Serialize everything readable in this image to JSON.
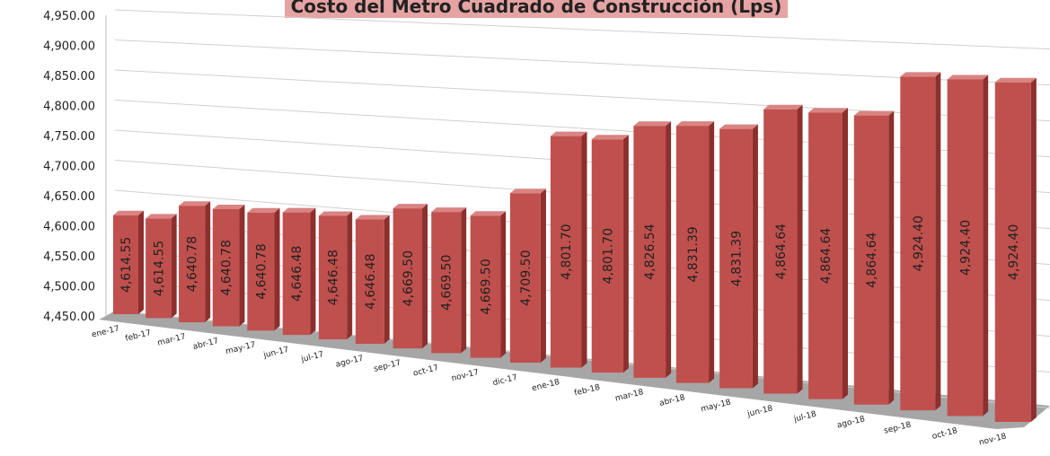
{
  "chart_data": {
    "type": "bar3d",
    "title": "Costo del Metro Cuadrado de Construcción (Lps)",
    "categories": [
      "ene-17",
      "feb-17",
      "mar-17",
      "abr-17",
      "may-17",
      "jun-17",
      "jul-17",
      "ago-17",
      "sep-17",
      "oct-17",
      "nov-17",
      "dic-17",
      "ene-18",
      "feb-18",
      "mar-18",
      "abr-18",
      "may-18",
      "jun-18",
      "jul-18",
      "ago-18",
      "sep-18",
      "oct-18",
      "nov-18"
    ],
    "values": [
      4614.55,
      4614.55,
      4640.78,
      4640.78,
      4640.78,
      4646.48,
      4646.48,
      4646.48,
      4669.5,
      4669.5,
      4669.5,
      4709.5,
      4801.7,
      4801.7,
      4826.54,
      4831.39,
      4831.39,
      4864.64,
      4864.64,
      4864.64,
      4924.4,
      4924.4,
      4924.4
    ],
    "value_labels": [
      "4,614.55",
      "4,614.55",
      "4,640.78",
      "4,640.78",
      "4,640.78",
      "4,646.48",
      "4,646.48",
      "4,646.48",
      "4,669.50",
      "4,669.50",
      "4,669.50",
      "4,709.50",
      "4,801.70",
      "4,801.70",
      "4,826.54",
      "4,831.39",
      "4,831.39",
      "4,864.64",
      "4,864.64",
      "4,864.64",
      "4,924.40",
      "4,924.40",
      "4,924.40"
    ],
    "color": "#c0504d",
    "ylim": [
      4450,
      4950
    ],
    "yticks": [
      {
        "value": 4450,
        "label": "4,450.00"
      },
      {
        "value": 4500,
        "label": "4,500.00"
      },
      {
        "value": 4550,
        "label": "4,550.00"
      },
      {
        "value": 4600,
        "label": "4,600.00"
      },
      {
        "value": 4650,
        "label": "4,650.00"
      },
      {
        "value": 4700,
        "label": "4,700.00"
      },
      {
        "value": 4750,
        "label": "4,750.00"
      },
      {
        "value": 4800,
        "label": "4,800.00"
      },
      {
        "value": 4850,
        "label": "4,850.00"
      },
      {
        "value": 4900,
        "label": "4,900.00"
      },
      {
        "value": 4950,
        "label": "4,950.00"
      }
    ],
    "grid": true
  }
}
